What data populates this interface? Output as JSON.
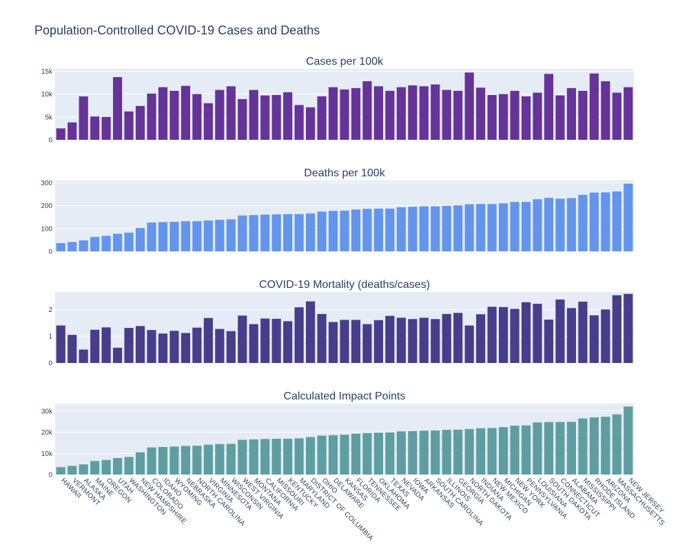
{
  "title": "Population-Controlled COVID-19 Cases and Deaths",
  "chart_data": {
    "type": "bar",
    "categories": [
      "HAWAII",
      "VERMONT",
      "ALASKA",
      "MAINE",
      "OREGON",
      "UTAH",
      "WASHINGTON",
      "NEW HAMPSHIRE",
      "COLORADO",
      "IDAHO",
      "WYOMING",
      "NEBRASKA",
      "NORTH CAROLINA",
      "VIRGINIA",
      "MINNESOTA",
      "WISCONSIN",
      "WEST VIRGINIA",
      "MONTANA",
      "CALIFORNIA",
      "MISSOURI",
      "KENTUCKY",
      "MARYLAND",
      "DISTRICT OF COLUMBIA",
      "OHIO",
      "DELAWARE",
      "KANSAS",
      "FLORIDA",
      "TENNESSEE",
      "OKLAHOMA",
      "TEXAS",
      "NEVADA",
      "IOWA",
      "ARKANSAS",
      "SOUTH CAROLINA",
      "ILLINOIS",
      "GEORGIA",
      "NORTH DAKOTA",
      "INDIANA",
      "NEW MEXICO",
      "MICHIGAN",
      "NEW YORK",
      "PENNSYLVANIA",
      "LOUISIANA",
      "SOUTH DAKOTA",
      "CONNECTICUT",
      "ALABAMA",
      "MISSISSIPPI",
      "RHODE ISLAND",
      "ARIZONA",
      "MASSACHUSETTS",
      "NEW JERSEY"
    ],
    "panels": [
      {
        "title": "Cases per 100k",
        "color": "#663399",
        "ylim": [
          0,
          15500
        ],
        "ticks": [
          {
            "v": 0,
            "label": "0"
          },
          {
            "v": 5000,
            "label": "5k"
          },
          {
            "v": 10000,
            "label": "10k"
          },
          {
            "v": 15000,
            "label": "15k"
          }
        ],
        "values": [
          2500,
          3800,
          9500,
          5100,
          5000,
          13700,
          6200,
          7400,
          10100,
          11500,
          10700,
          11800,
          10000,
          8000,
          10900,
          11700,
          8900,
          10900,
          9700,
          9800,
          10400,
          7600,
          7100,
          9500,
          11500,
          11000,
          11300,
          12800,
          11700,
          10700,
          11500,
          11900,
          11700,
          12100,
          10900,
          10700,
          14700,
          11400,
          9800,
          10000,
          10700,
          9500,
          10300,
          14400,
          9700,
          11300,
          10700,
          14500,
          12800,
          10300,
          11500
        ]
      },
      {
        "title": "Deaths per 100k",
        "color": "#6495ED",
        "ylim": [
          0,
          310
        ],
        "ticks": [
          {
            "v": 0,
            "label": "0"
          },
          {
            "v": 100,
            "label": "100"
          },
          {
            "v": 200,
            "label": "200"
          },
          {
            "v": 300,
            "label": "300"
          }
        ],
        "values": [
          36,
          41,
          48,
          63,
          68,
          77,
          82,
          102,
          126,
          128,
          129,
          132,
          132,
          135,
          138,
          140,
          157,
          159,
          161,
          162,
          163,
          163,
          166,
          174,
          177,
          178,
          183,
          186,
          187,
          187,
          193,
          195,
          197,
          197,
          199,
          201,
          206,
          207,
          207,
          210,
          216,
          216,
          228,
          234,
          230,
          233,
          247,
          257,
          258,
          262,
          296
        ]
      },
      {
        "title": "COVID-19 Mortality (deaths/cases)",
        "color": "#483D8B",
        "ylim": [
          0,
          2.65
        ],
        "ticks": [
          {
            "v": 0,
            "label": "0"
          },
          {
            "v": 1,
            "label": "1"
          },
          {
            "v": 2,
            "label": "2"
          }
        ],
        "values": [
          1.4,
          1.05,
          0.5,
          1.24,
          1.33,
          0.57,
          1.31,
          1.38,
          1.23,
          1.1,
          1.2,
          1.12,
          1.32,
          1.68,
          1.27,
          1.19,
          1.77,
          1.45,
          1.66,
          1.65,
          1.56,
          2.08,
          2.3,
          1.83,
          1.53,
          1.61,
          1.61,
          1.45,
          1.6,
          1.76,
          1.69,
          1.64,
          1.69,
          1.64,
          1.83,
          1.87,
          1.4,
          1.82,
          2.1,
          2.09,
          2.02,
          2.27,
          2.21,
          1.62,
          2.37,
          2.05,
          2.29,
          1.78,
          2.0,
          2.53,
          2.58
        ]
      },
      {
        "title": "Calculated Impact Points",
        "color": "#5F9EA0",
        "ylim": [
          0,
          33500
        ],
        "ticks": [
          {
            "v": 0,
            "label": "0"
          },
          {
            "v": 10000,
            "label": "10k"
          },
          {
            "v": 20000,
            "label": "20k"
          },
          {
            "v": 30000,
            "label": "30k"
          }
        ],
        "values": [
          3500,
          4100,
          4800,
          6400,
          6900,
          7800,
          8300,
          10500,
          12800,
          13000,
          13200,
          13500,
          13600,
          14100,
          14400,
          14500,
          16400,
          16600,
          16800,
          16900,
          16900,
          17100,
          17700,
          18400,
          18600,
          18800,
          19300,
          19600,
          19800,
          19900,
          20400,
          20500,
          20700,
          20800,
          21100,
          21200,
          21500,
          21900,
          22000,
          22400,
          23100,
          23200,
          24600,
          24800,
          24800,
          24900,
          26500,
          27000,
          27300,
          28400,
          32100
        ]
      }
    ]
  }
}
